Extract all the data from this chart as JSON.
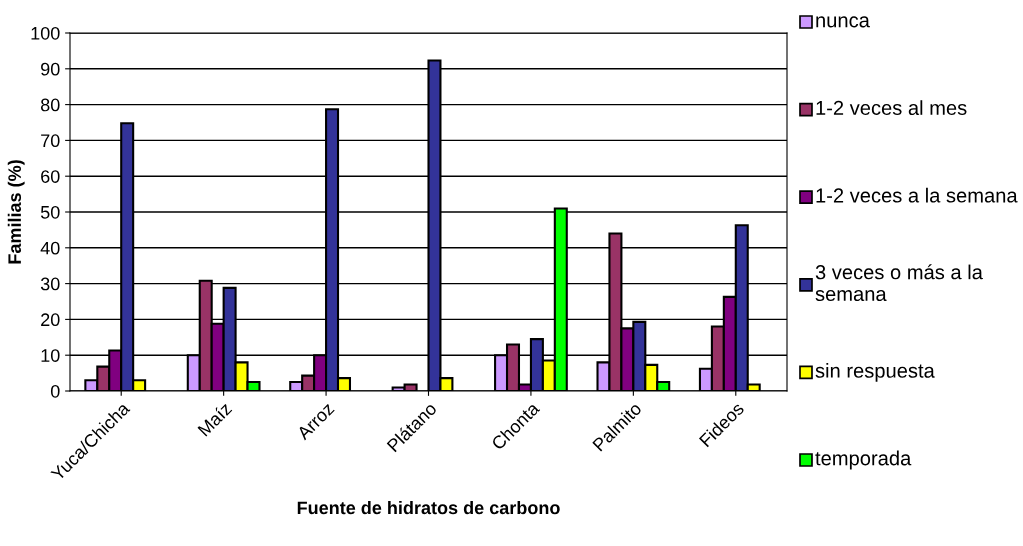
{
  "chart_data": {
    "type": "bar",
    "xlabel": "Fuente de hidratos de carbono",
    "ylabel": "Familias (%)",
    "categories": [
      "Yuca/Chicha",
      "Maíz",
      "Arroz",
      "Plátano",
      "Chonta",
      "Palmito",
      "Fideos"
    ],
    "series": [
      {
        "name": "nunca",
        "color": "#cc99ff",
        "values": [
          3,
          10,
          2.5,
          1,
          10,
          8,
          6.2
        ]
      },
      {
        "name": "1-2 veces al mes",
        "color": "#993366",
        "values": [
          6.8,
          30.8,
          4.3,
          1.8,
          13,
          44,
          18
        ]
      },
      {
        "name": "1-2 veces a la semana",
        "color": "#800080",
        "values": [
          11.3,
          18.8,
          10,
          null,
          1.8,
          17.5,
          26.3
        ]
      },
      {
        "name": "3 veces o más a la semana",
        "color": "#333399",
        "values": [
          74.8,
          28.8,
          78.7,
          92.3,
          14.5,
          19.3,
          46.3
        ]
      },
      {
        "name": "sin respuesta",
        "color": "#ffff00",
        "values": [
          3,
          8,
          3.6,
          3.6,
          8.5,
          7.3,
          1.8
        ]
      },
      {
        "name": "temporada",
        "color": "#00ff00",
        "values": [
          null,
          2.5,
          null,
          null,
          51,
          2.5,
          null
        ]
      }
    ],
    "ylim": [
      0,
      100
    ],
    "yticks": [
      0,
      10,
      20,
      30,
      40,
      50,
      60,
      70,
      80,
      90,
      100
    ],
    "grid": "y",
    "legend": "right"
  }
}
